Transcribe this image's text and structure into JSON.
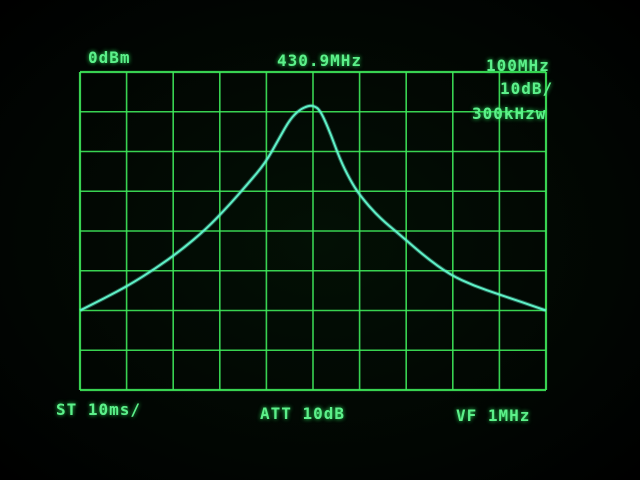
{
  "colors": {
    "grid": "#3ee85a",
    "trace": "#5ff0c8",
    "text": "#5cf08a"
  },
  "chart_data": {
    "type": "line",
    "title": "",
    "xlabel": "",
    "ylabel": "",
    "grid": true,
    "grid_divisions": {
      "x": 10,
      "y": 8
    },
    "xlim": [
      380.9,
      480.9
    ],
    "ylim": [
      -80,
      0
    ],
    "series": [
      {
        "x": [
          380.9,
          386,
          391.6,
          397,
          402.4,
          408,
          412.9,
          417,
          420.6,
          423.5,
          425.9,
          428,
          429.9,
          431,
          432.4,
          434.5,
          436.7,
          438.8,
          440.9,
          445,
          449.6,
          455,
          460.3,
          465.5,
          470.9,
          476,
          480.9
        ],
        "y": [
          -60,
          -57,
          -53.5,
          -49.5,
          -45,
          -39.5,
          -33.5,
          -28,
          -23,
          -17,
          -12,
          -9.5,
          -8.5,
          -8.5,
          -9.5,
          -15,
          -22,
          -27,
          -31,
          -36.5,
          -41,
          -46.5,
          -51,
          -53.8,
          -56,
          -58,
          -60
        ]
      }
    ]
  },
  "annotations": {
    "ref_level": "0dBm",
    "center_freq": "430.9MHz",
    "span": "100MHz",
    "scale": "10dB/",
    "rbw": "300kHzw",
    "sweep_time": "ST 10ms/",
    "attenuation": "ATT 10dB",
    "video_filter": "VF 1MHz"
  }
}
